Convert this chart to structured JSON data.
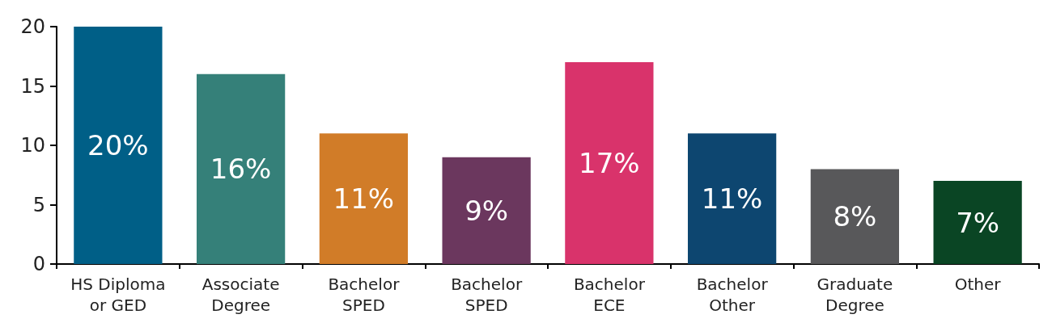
{
  "chart_data": {
    "type": "bar",
    "categories": [
      "HS Diploma\nor GED",
      "Associate\nDegree",
      "Bachelor\nSPED",
      "Bachelor\nSPED",
      "Bachelor\nECE",
      "Bachelor\nOther",
      "Graduate\nDegree",
      "Other"
    ],
    "values": [
      20,
      16,
      11,
      9,
      17,
      11,
      8,
      7
    ],
    "colors": [
      "#005f87",
      "#358079",
      "#d17c28",
      "#6b375e",
      "#d9336b",
      "#0d4670",
      "#58585a",
      "#0a4524"
    ],
    "value_labels": [
      "20%",
      "16%",
      "11%",
      "9%",
      "17%",
      "11%",
      "8%",
      "7%"
    ],
    "ylim": [
      0,
      20
    ],
    "yticks": [
      0,
      5,
      10,
      15,
      20
    ]
  }
}
